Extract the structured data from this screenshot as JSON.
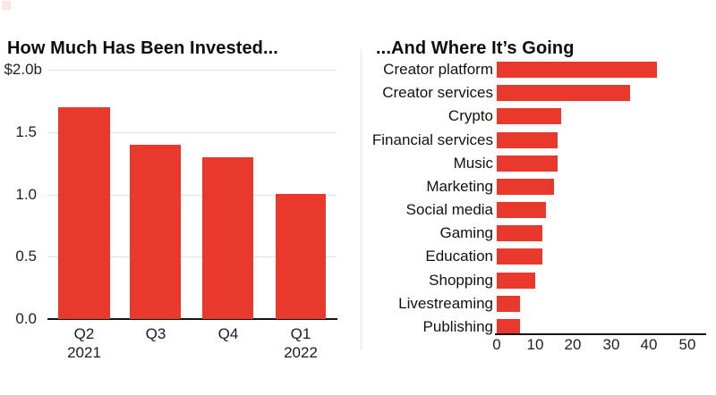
{
  "page": {
    "background": "#ffffff",
    "accent_red": "#e9392d",
    "gridline_color": "#e0e0e0",
    "axis_color": "#141414",
    "divider_color": "#e4e4e4",
    "brand_square_color": "#fae7e4"
  },
  "chart_data": [
    {
      "id": "invested",
      "type": "bar",
      "title": "How Much Has Been Invested...",
      "categories": [
        [
          "Q2",
          "2021"
        ],
        [
          "Q3"
        ],
        [
          "Q4"
        ],
        [
          "Q1",
          "2022"
        ]
      ],
      "values": [
        1.7,
        1.4,
        1.3,
        1.0
      ],
      "y_ticks": [
        {
          "label": "$2.0b",
          "value": 2.0
        },
        {
          "label": "1.5",
          "value": 1.5
        },
        {
          "label": "1.0",
          "value": 1.0
        },
        {
          "label": "0.5",
          "value": 0.5
        },
        {
          "label": "0.0",
          "value": 0.0
        }
      ],
      "ylim": [
        0,
        2.0
      ],
      "grid": true,
      "legend": "none",
      "bar_color": "#e9392d"
    },
    {
      "id": "destination",
      "type": "bar-horizontal",
      "title": "...And Where It’s Going",
      "categories": [
        "Creator platform",
        "Creator services",
        "Crypto",
        "Financial services",
        "Music",
        "Marketing",
        "Social media",
        "Gaming",
        "Education",
        "Shopping",
        "Livestreaming",
        "Publishing"
      ],
      "values": [
        42,
        35,
        17,
        16,
        16,
        15,
        13,
        12,
        12,
        10,
        6,
        6
      ],
      "x_ticks": [
        {
          "label": "0",
          "value": 0
        },
        {
          "label": "10",
          "value": 10
        },
        {
          "label": "20",
          "value": 20
        },
        {
          "label": "30",
          "value": 30
        },
        {
          "label": "40",
          "value": 40
        },
        {
          "label": "50",
          "value": 50
        }
      ],
      "xlim": [
        0,
        50
      ],
      "grid": false,
      "legend": "none",
      "bar_color": "#e9392d"
    }
  ]
}
